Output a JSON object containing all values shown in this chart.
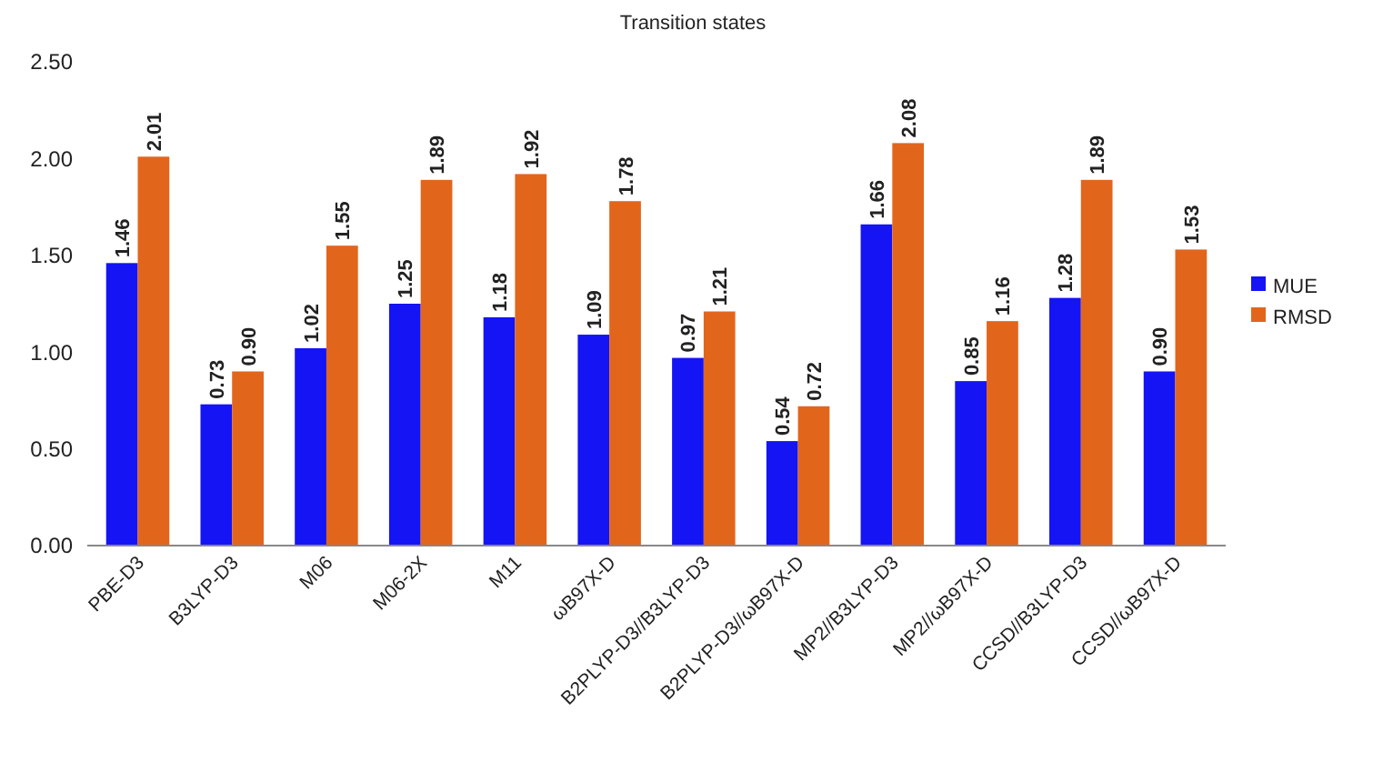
{
  "chart_data": {
    "type": "bar",
    "title": "Transition states",
    "categories": [
      "PBE-D3",
      "B3LYP-D3",
      "M06",
      "M06-2X",
      "M11",
      "ωB97X-D",
      "B2PLYP-D3//B3LYP-D3",
      "B2PLYP-D3//ωB97X-D",
      "MP2//B3LYP-D3",
      "MP2//ωB97X-D",
      "CCSD//B3LYP-D3",
      "CCSD//ωB97X-D"
    ],
    "series": [
      {
        "name": "MUE",
        "color": "#1414f5",
        "values": [
          1.46,
          0.73,
          1.02,
          1.25,
          1.18,
          1.09,
          0.97,
          0.54,
          1.66,
          0.85,
          1.28,
          0.9
        ],
        "value_labels": [
          "1.46",
          "0.73",
          "1.02",
          "1.25",
          "1.18",
          "1.09",
          "0.97",
          "0.54",
          "1.66",
          "0.85",
          "1.28",
          "0.90"
        ]
      },
      {
        "name": "RMSD",
        "color": "#e2651c",
        "values": [
          2.01,
          0.9,
          1.55,
          1.89,
          1.92,
          1.78,
          1.21,
          0.72,
          2.08,
          1.16,
          1.89,
          1.53
        ],
        "value_labels": [
          "2.01",
          "0.90",
          "1.55",
          "1.89",
          "1.92",
          "1.78",
          "1.21",
          "0.72",
          "2.08",
          "1.16",
          "1.89",
          "1.53"
        ]
      }
    ],
    "ylim": [
      0,
      2.5
    ],
    "yticks": [
      {
        "value": 0,
        "label": "0.00"
      },
      {
        "value": 0.5,
        "label": "0.50"
      },
      {
        "value": 1,
        "label": "1.00"
      },
      {
        "value": 1.5,
        "label": "1.50"
      },
      {
        "value": 2,
        "label": "2.00"
      },
      {
        "value": 2.5,
        "label": "2.50"
      }
    ],
    "legend": "right"
  }
}
